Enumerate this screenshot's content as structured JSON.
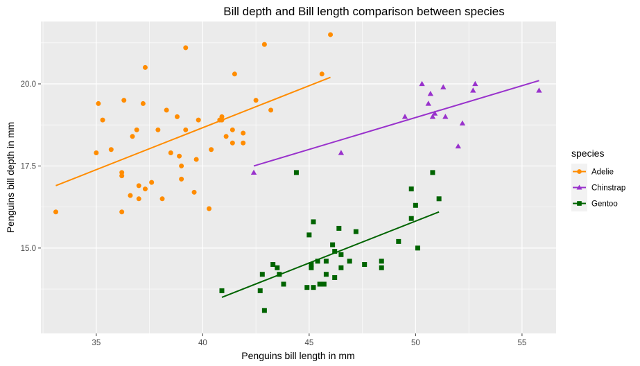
{
  "chart_data": {
    "type": "scatter",
    "title": "Bill depth and Bill length comparison between species",
    "xlabel": "Penguins bill length in mm",
    "ylabel": "Penguins bill depth in mm",
    "xlim": [
      32.4,
      56.6
    ],
    "ylim": [
      12.4,
      21.9
    ],
    "x_ticks": [
      35,
      40,
      45,
      50,
      55
    ],
    "y_ticks": [
      15.0,
      17.5,
      20.0
    ],
    "x_tick_labels": [
      "35",
      "40",
      "45",
      "50",
      "55"
    ],
    "y_tick_labels": [
      "15.0",
      "17.5",
      "20.0"
    ],
    "grid": true,
    "legend": {
      "title": "species",
      "position": "right"
    },
    "series": [
      {
        "name": "Adelie",
        "color": "#ff8c00",
        "marker": "circle",
        "points": [
          [
            33.1,
            16.1
          ],
          [
            35.0,
            17.9
          ],
          [
            35.1,
            19.4
          ],
          [
            35.3,
            18.9
          ],
          [
            35.7,
            18.0
          ],
          [
            36.2,
            16.1
          ],
          [
            36.2,
            17.2
          ],
          [
            36.2,
            17.3
          ],
          [
            36.3,
            19.5
          ],
          [
            36.6,
            16.6
          ],
          [
            36.7,
            18.4
          ],
          [
            36.9,
            18.6
          ],
          [
            37.0,
            16.5
          ],
          [
            37.0,
            16.9
          ],
          [
            37.2,
            19.4
          ],
          [
            37.3,
            20.5
          ],
          [
            37.3,
            16.8
          ],
          [
            37.6,
            17.0
          ],
          [
            37.9,
            18.6
          ],
          [
            38.1,
            16.5
          ],
          [
            38.3,
            19.2
          ],
          [
            38.5,
            17.9
          ],
          [
            38.8,
            19.0
          ],
          [
            38.9,
            17.8
          ],
          [
            39.0,
            17.1
          ],
          [
            39.0,
            17.5
          ],
          [
            39.2,
            21.1
          ],
          [
            39.2,
            18.6
          ],
          [
            39.6,
            16.7
          ],
          [
            39.7,
            17.7
          ],
          [
            39.8,
            18.9
          ],
          [
            40.3,
            16.2
          ],
          [
            40.4,
            18.0
          ],
          [
            40.8,
            18.9
          ],
          [
            40.9,
            19.0
          ],
          [
            40.9,
            18.9
          ],
          [
            41.1,
            18.4
          ],
          [
            41.4,
            18.2
          ],
          [
            41.4,
            18.6
          ],
          [
            41.5,
            20.3
          ],
          [
            41.9,
            18.5
          ],
          [
            41.9,
            18.2
          ],
          [
            42.5,
            19.5
          ],
          [
            42.9,
            21.2
          ],
          [
            43.2,
            19.2
          ],
          [
            45.6,
            20.3
          ],
          [
            46.0,
            21.5
          ]
        ],
        "fit": [
          [
            33.1,
            16.9
          ],
          [
            46.0,
            20.2
          ]
        ]
      },
      {
        "name": "Chinstrap",
        "color": "#9932cc",
        "marker": "triangle",
        "points": [
          [
            42.4,
            17.3
          ],
          [
            46.5,
            17.9
          ],
          [
            49.5,
            19.0
          ],
          [
            50.3,
            20.0
          ],
          [
            50.6,
            19.4
          ],
          [
            50.7,
            19.7
          ],
          [
            50.8,
            19.0
          ],
          [
            50.9,
            19.1
          ],
          [
            51.3,
            19.9
          ],
          [
            51.4,
            19.0
          ],
          [
            52.0,
            18.1
          ],
          [
            52.2,
            18.8
          ],
          [
            52.7,
            19.8
          ],
          [
            52.8,
            20.0
          ],
          [
            55.8,
            19.8
          ]
        ],
        "fit": [
          [
            42.4,
            17.5
          ],
          [
            55.8,
            20.1
          ]
        ]
      },
      {
        "name": "Gentoo",
        "color": "#006400",
        "marker": "square",
        "points": [
          [
            40.9,
            13.7
          ],
          [
            42.7,
            13.7
          ],
          [
            42.8,
            14.2
          ],
          [
            42.9,
            13.1
          ],
          [
            43.3,
            14.5
          ],
          [
            43.5,
            14.4
          ],
          [
            43.6,
            14.2
          ],
          [
            43.8,
            13.9
          ],
          [
            44.4,
            17.3
          ],
          [
            44.9,
            13.8
          ],
          [
            45.0,
            15.4
          ],
          [
            45.1,
            14.5
          ],
          [
            45.1,
            14.4
          ],
          [
            45.2,
            15.8
          ],
          [
            45.2,
            13.8
          ],
          [
            45.4,
            14.6
          ],
          [
            45.5,
            13.9
          ],
          [
            45.7,
            13.9
          ],
          [
            45.8,
            14.2
          ],
          [
            45.8,
            14.6
          ],
          [
            46.1,
            15.1
          ],
          [
            46.2,
            14.9
          ],
          [
            46.2,
            14.1
          ],
          [
            46.4,
            15.6
          ],
          [
            46.5,
            14.8
          ],
          [
            46.5,
            14.4
          ],
          [
            46.9,
            14.6
          ],
          [
            47.2,
            15.5
          ],
          [
            47.6,
            14.5
          ],
          [
            48.4,
            14.6
          ],
          [
            48.4,
            14.4
          ],
          [
            49.2,
            15.2
          ],
          [
            49.8,
            15.9
          ],
          [
            49.8,
            16.8
          ],
          [
            50.0,
            16.3
          ],
          [
            50.1,
            15.0
          ],
          [
            50.8,
            17.3
          ],
          [
            51.1,
            16.5
          ]
        ],
        "fit": [
          [
            40.9,
            13.5
          ],
          [
            51.1,
            16.1
          ]
        ]
      }
    ]
  }
}
